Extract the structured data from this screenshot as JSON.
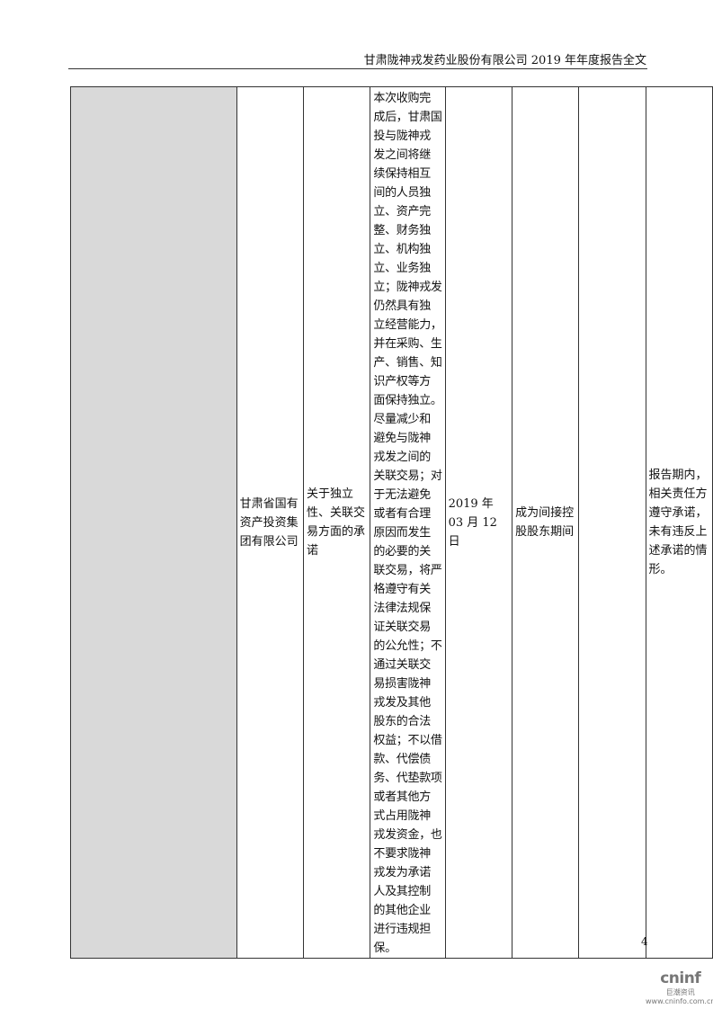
{
  "header": {
    "title": "甘肃陇神戎发药业股份有限公司 2019 年年度报告全文"
  },
  "row": {
    "party": "甘肃省国有资产投资集团有限公司",
    "type": "关于独立性、关联交易方面的承诺",
    "content_lines": [
      "本次收购完",
      "成后，甘肃国",
      "投与陇神戎",
      "发之间将继",
      "续保持相互",
      "间的人员独",
      "立、资产完",
      "整、财务独",
      "立、机构独",
      "立、业务独",
      "立；陇神戎发",
      "仍然具有独",
      "立经营能力，",
      "并在采购、生",
      "产、销售、知",
      "识产权等方",
      "面保持独立。",
      "尽量减少和",
      "避免与陇神",
      "戎发之间的",
      "关联交易；对",
      "于无法避免",
      "或者有合理",
      "原因而发生",
      "的必要的关",
      "联交易，将严",
      "格遵守有关",
      "法律法规保",
      "证关联交易",
      "的公允性；不",
      "通过关联交",
      "易损害陇神",
      "戎发及其他",
      "股东的合法",
      "权益；不以借",
      "款、代偿债",
      "务、代垫款项",
      "或者其他方",
      "式占用陇神",
      "戎发资金，也",
      "不要求陇神",
      "戎发为承诺",
      "人及其控制",
      "的其他企业",
      "进行违规担",
      "保。"
    ],
    "date": "2019 年 03 月 12 日",
    "term": "成为间接控股股东期间",
    "status": "",
    "fulfillment": "报告期内，相关责任方遵守承诺，未有违反上述承诺的情形。"
  },
  "page_number": "4",
  "logo": {
    "brand": "cninf",
    "cn": "巨潮资讯",
    "url": "www.cninfo.com.cn"
  }
}
